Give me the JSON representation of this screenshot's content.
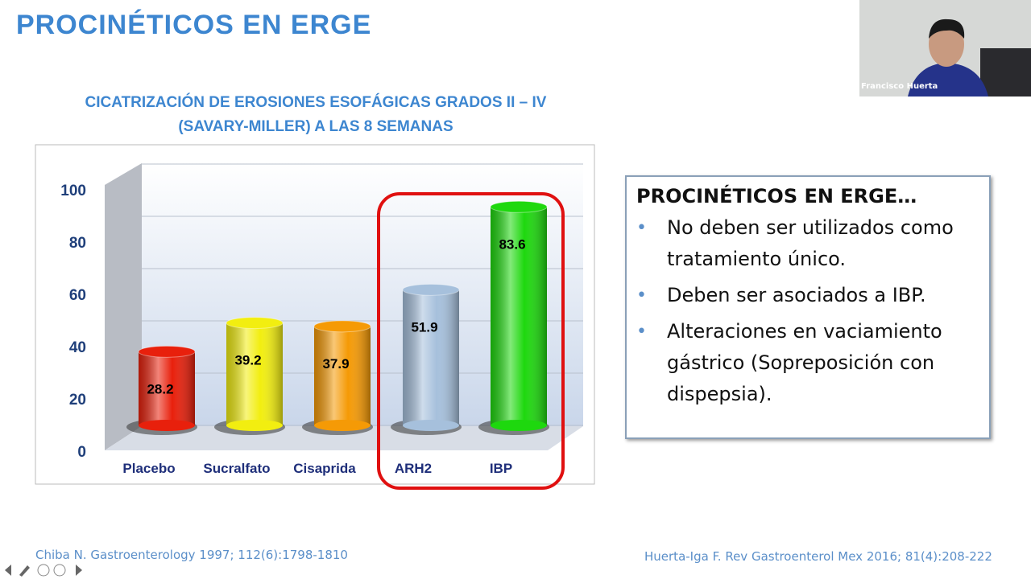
{
  "slide_title": "PROCINÉTICOS EN ERGE",
  "chart_data": {
    "type": "bar",
    "title": "CICATRIZACIÓN DE EROSIONES ESOFÁGICAS GRADOS II – IV",
    "subtitle": "(SAVARY-MILLER) A LAS 8 SEMANAS",
    "categories": [
      "Placebo",
      "Sucralfato",
      "Cisaprida",
      "ARH2",
      "IBP"
    ],
    "values": [
      28.2,
      39.2,
      37.9,
      51.9,
      83.6
    ],
    "colors": [
      "#e8200c",
      "#f2ee10",
      "#f59a06",
      "#a6c0dc",
      "#1ed80e"
    ],
    "ylim": [
      0,
      100
    ],
    "yticks": [
      0,
      20,
      40,
      60,
      80,
      100
    ],
    "grid": true
  },
  "box": {
    "title": "PROCINÉTICOS EN ERGE…",
    "bullets": [
      "No deben ser utilizados como tratamiento único.",
      "Deben ser asociados a IBP.",
      "Alteraciones en vaciamiento gástrico (Sopreposición con dispepsia)."
    ]
  },
  "citations": [
    "Chiba N. Gastroenterology 1997; 112(6):1798-1810",
    "Huerta-Iga F. Rev Gastroenterol Mex 2016; 81(4):208-222"
  ],
  "speaker": "Francisco Huerta"
}
